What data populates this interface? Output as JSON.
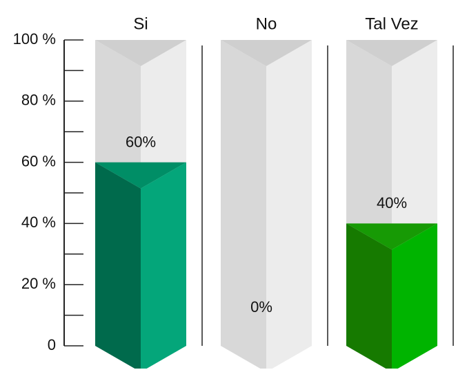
{
  "chart_data": {
    "type": "bar",
    "categories": [
      "Si",
      "No",
      "Tal Vez"
    ],
    "values": [
      60,
      0,
      40
    ],
    "value_labels": [
      "60%",
      "0%",
      "40%"
    ],
    "ylim": [
      0,
      100
    ],
    "yticks": [
      {
        "value": 0,
        "label": "0"
      },
      {
        "value": 20,
        "label": "20 %"
      },
      {
        "value": 40,
        "label": "40 %"
      },
      {
        "value": 60,
        "label": "60 %"
      },
      {
        "value": 80,
        "label": "80 %"
      },
      {
        "value": 100,
        "label": "100 %"
      }
    ],
    "minor_tick_step": 10,
    "colors": [
      {
        "front": "#04a67a",
        "side": "#006a4c",
        "cap": "#008e66"
      },
      {
        "front": "#e6e6e6",
        "side": "#d9d9d9",
        "cap": "#d0d0d0"
      },
      {
        "front": "#00b400",
        "side": "#167a00",
        "cap": "#179a05"
      }
    ],
    "track_colors": {
      "front": "#ececec",
      "side": "#d8d8d8",
      "cap": "#cfcfcf"
    },
    "axis_color": "#222222",
    "grid": false,
    "legend": "none"
  }
}
